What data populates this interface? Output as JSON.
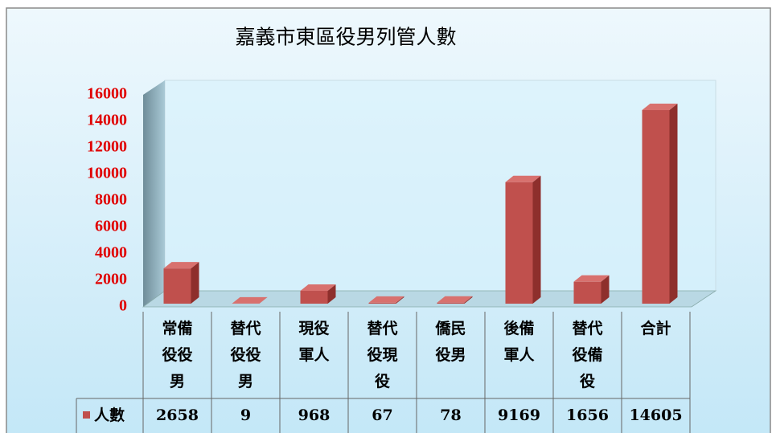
{
  "chart_data": {
    "type": "bar",
    "title": "嘉義市東區役男列管人數",
    "categories": [
      "常備役役男",
      "替代役役男",
      "現役軍人",
      "替代役現役",
      "僑民役男",
      "後備軍人",
      "替代役備役",
      "合計"
    ],
    "series": [
      {
        "name": "人數",
        "color": "#c0504d",
        "values": [
          2658,
          9,
          968,
          67,
          78,
          9169,
          1656,
          14605
        ]
      }
    ],
    "ylim": [
      0,
      16000
    ],
    "yticks": [
      0,
      2000,
      4000,
      6000,
      8000,
      10000,
      12000,
      14000,
      16000
    ],
    "tick_color": "#e00000",
    "data_table": true
  }
}
